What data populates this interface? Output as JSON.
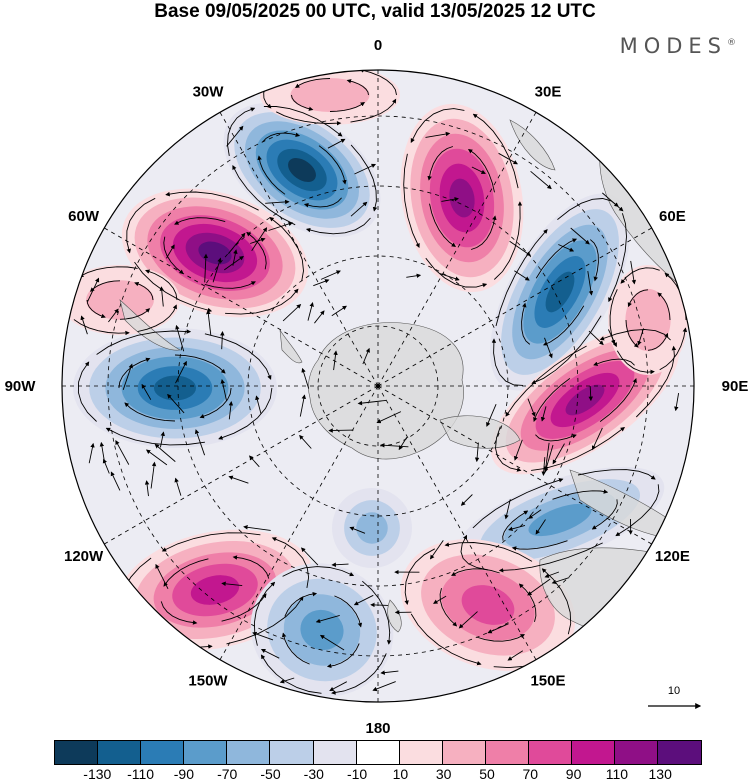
{
  "header": {
    "title": "Base 09/05/2025 00 UTC, valid 13/05/2025 12 UTC",
    "brand": "MODES",
    "brand_mark": "®"
  },
  "map": {
    "projection": "south polar stereographic",
    "longitude_labels": [
      {
        "id": "0",
        "text": "0"
      },
      {
        "id": "30e",
        "text": "30E"
      },
      {
        "id": "60e",
        "text": "60E"
      },
      {
        "id": "90e",
        "text": "90E"
      },
      {
        "id": "120e",
        "text": "120E"
      },
      {
        "id": "150e",
        "text": "150E"
      },
      {
        "id": "180",
        "text": "180"
      },
      {
        "id": "150w",
        "text": "150W"
      },
      {
        "id": "120w",
        "text": "120W"
      },
      {
        "id": "90w",
        "text": "90W"
      },
      {
        "id": "60w",
        "text": "60W"
      },
      {
        "id": "30w",
        "text": "30W"
      }
    ],
    "reference_vector_label": "10",
    "land_color": "#e6e6e6"
  },
  "colorbar": {
    "colors": [
      "#0d3a5a",
      "#135f8f",
      "#2b7cb5",
      "#5b9ccb",
      "#8fb7dc",
      "#bccfe8",
      "#e3e3ef",
      "#ffffff",
      "#fbdde0",
      "#f6b0c0",
      "#ef7fa8",
      "#e04a9a",
      "#c2178f",
      "#8f0f86",
      "#5c0e7c"
    ],
    "tick_labels": [
      "-130",
      "-110",
      "-90",
      "-70",
      "-50",
      "-30",
      "-10",
      "10",
      "30",
      "50",
      "70",
      "90",
      "110",
      "130"
    ]
  }
}
